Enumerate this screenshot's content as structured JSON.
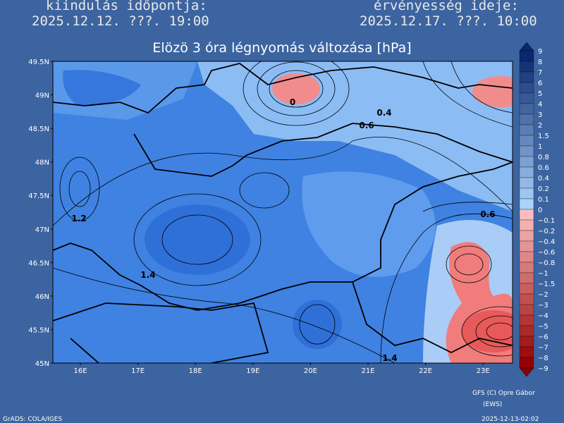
{
  "header": {
    "init_label": "kiindulás időpontja:",
    "init_time": "2025.12.12. ???. 19:00",
    "valid_label": "érvényesség ideje:",
    "valid_time": "2025.12.17. ???. 10:00"
  },
  "title": "Elözö 3 óra légnyomás változása [hPa]",
  "map": {
    "lat_labels": [
      "49.5N",
      "49N",
      "48.5N",
      "48N",
      "47.5N",
      "47N",
      "46.5N",
      "46N",
      "45.5N",
      "45N"
    ],
    "lon_labels": [
      "16E",
      "17E",
      "18E",
      "19E",
      "20E",
      "21E",
      "22E",
      "23E"
    ],
    "contour_labels": [
      "0",
      "0.4",
      "0.6",
      "1.2",
      "1.4",
      "0.6",
      "1.4"
    ]
  },
  "colorbar": {
    "labels": [
      "9",
      "8",
      "7",
      "6",
      "5",
      "4",
      "3",
      "2",
      "1.5",
      "1",
      "0.8",
      "0.6",
      "0.4",
      "0.2",
      "0.1",
      "0",
      "−0.1",
      "−0.2",
      "−0.4",
      "−0.6",
      "−0.8",
      "−1",
      "−1.5",
      "−2",
      "−3",
      "−4",
      "−5",
      "−6",
      "−7",
      "−8",
      "−9"
    ]
  },
  "footer": {
    "credit": "GFS (C) Opre Gábor",
    "credit_sub": "(EWS)",
    "software": "GrADS: COLA/IGES",
    "timestamp": "2025-12-13-02:02"
  }
}
